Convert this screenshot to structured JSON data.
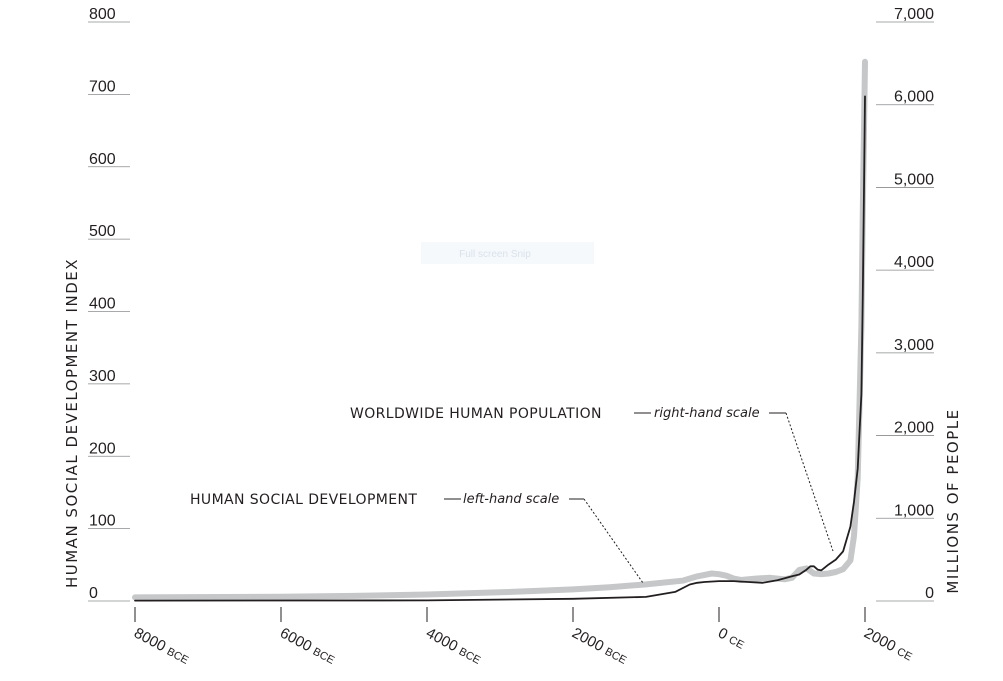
{
  "watermark": "Full screen Snip",
  "chart_data": {
    "type": "line",
    "title": "",
    "ylabel_left": "HUMAN SOCIAL DEVELOPMENT INDEX",
    "ylabel_right": "MILLIONS OF PEOPLE",
    "xlim": [
      -8000,
      2000
    ],
    "ylim_left": [
      0,
      800
    ],
    "ylim_right": [
      0,
      7000
    ],
    "x_ticks": [
      {
        "value": -8000,
        "num": "8000",
        "era": "BCE"
      },
      {
        "value": -6000,
        "num": "6000",
        "era": "BCE"
      },
      {
        "value": -4000,
        "num": "4000",
        "era": "BCE"
      },
      {
        "value": -2000,
        "num": "2000",
        "era": "BCE"
      },
      {
        "value": 0,
        "num": "0",
        "era": "CE"
      },
      {
        "value": 2000,
        "num": "2000",
        "era": "CE"
      }
    ],
    "y_left_ticks": [
      {
        "value": 0,
        "label": "0"
      },
      {
        "value": 100,
        "label": "100"
      },
      {
        "value": 200,
        "label": "200"
      },
      {
        "value": 300,
        "label": "300"
      },
      {
        "value": 400,
        "label": "400"
      },
      {
        "value": 500,
        "label": "500"
      },
      {
        "value": 600,
        "label": "600"
      },
      {
        "value": 700,
        "label": "700"
      },
      {
        "value": 800,
        "label": "800"
      }
    ],
    "y_right_ticks": [
      {
        "value": 0,
        "label": "0"
      },
      {
        "value": 1000,
        "label": "1,000"
      },
      {
        "value": 2000,
        "label": "2,000"
      },
      {
        "value": 3000,
        "label": "3,000"
      },
      {
        "value": 4000,
        "label": "4,000"
      },
      {
        "value": 5000,
        "label": "5,000"
      },
      {
        "value": 6000,
        "label": "6,000"
      },
      {
        "value": 7000,
        "label": "7,000"
      }
    ],
    "series": [
      {
        "name": "HUMAN SOCIAL DEVELOPMENT",
        "scale": "left",
        "color": "#c5c7c8",
        "x": [
          -8000,
          -6000,
          -5000,
          -4000,
          -3000,
          -2500,
          -2000,
          -1500,
          -1000,
          -500,
          -300,
          -100,
          0,
          100,
          200,
          300,
          500,
          700,
          900,
          1000,
          1100,
          1200,
          1300,
          1400,
          1500,
          1600,
          1700,
          1800,
          1850,
          1900,
          1950,
          1970,
          2000
        ],
        "values": [
          5,
          6,
          7,
          9,
          12,
          14,
          16,
          19,
          23,
          28,
          34,
          38,
          37,
          35,
          31,
          29,
          31,
          32,
          30,
          32,
          43,
          45,
          38,
          37,
          38,
          40,
          44,
          56,
          90,
          170,
          380,
          540,
          745
        ]
      },
      {
        "name": "WORLDWIDE HUMAN POPULATION",
        "scale": "right",
        "color": "#231f20",
        "x": [
          -8000,
          -4000,
          -2000,
          -1000,
          -600,
          -400,
          -300,
          -200,
          0,
          200,
          400,
          600,
          800,
          1000,
          1100,
          1200,
          1250,
          1300,
          1350,
          1400,
          1500,
          1600,
          1700,
          1800,
          1850,
          1900,
          1950,
          1970,
          1990,
          2000
        ],
        "values": [
          5,
          7,
          27,
          50,
          110,
          200,
          220,
          230,
          240,
          240,
          230,
          220,
          250,
          300,
          320,
          380,
          420,
          420,
          380,
          370,
          440,
          500,
          600,
          900,
          1200,
          1600,
          2500,
          3700,
          5300,
          6100
        ]
      }
    ],
    "annotations": [
      {
        "series": 0,
        "caps": "HUMAN SOCIAL DEVELOPMENT",
        "italic": "left-hand scale"
      },
      {
        "series": 1,
        "caps": "WORLDWIDE HUMAN POPULATION",
        "italic": "right-hand scale"
      }
    ]
  }
}
